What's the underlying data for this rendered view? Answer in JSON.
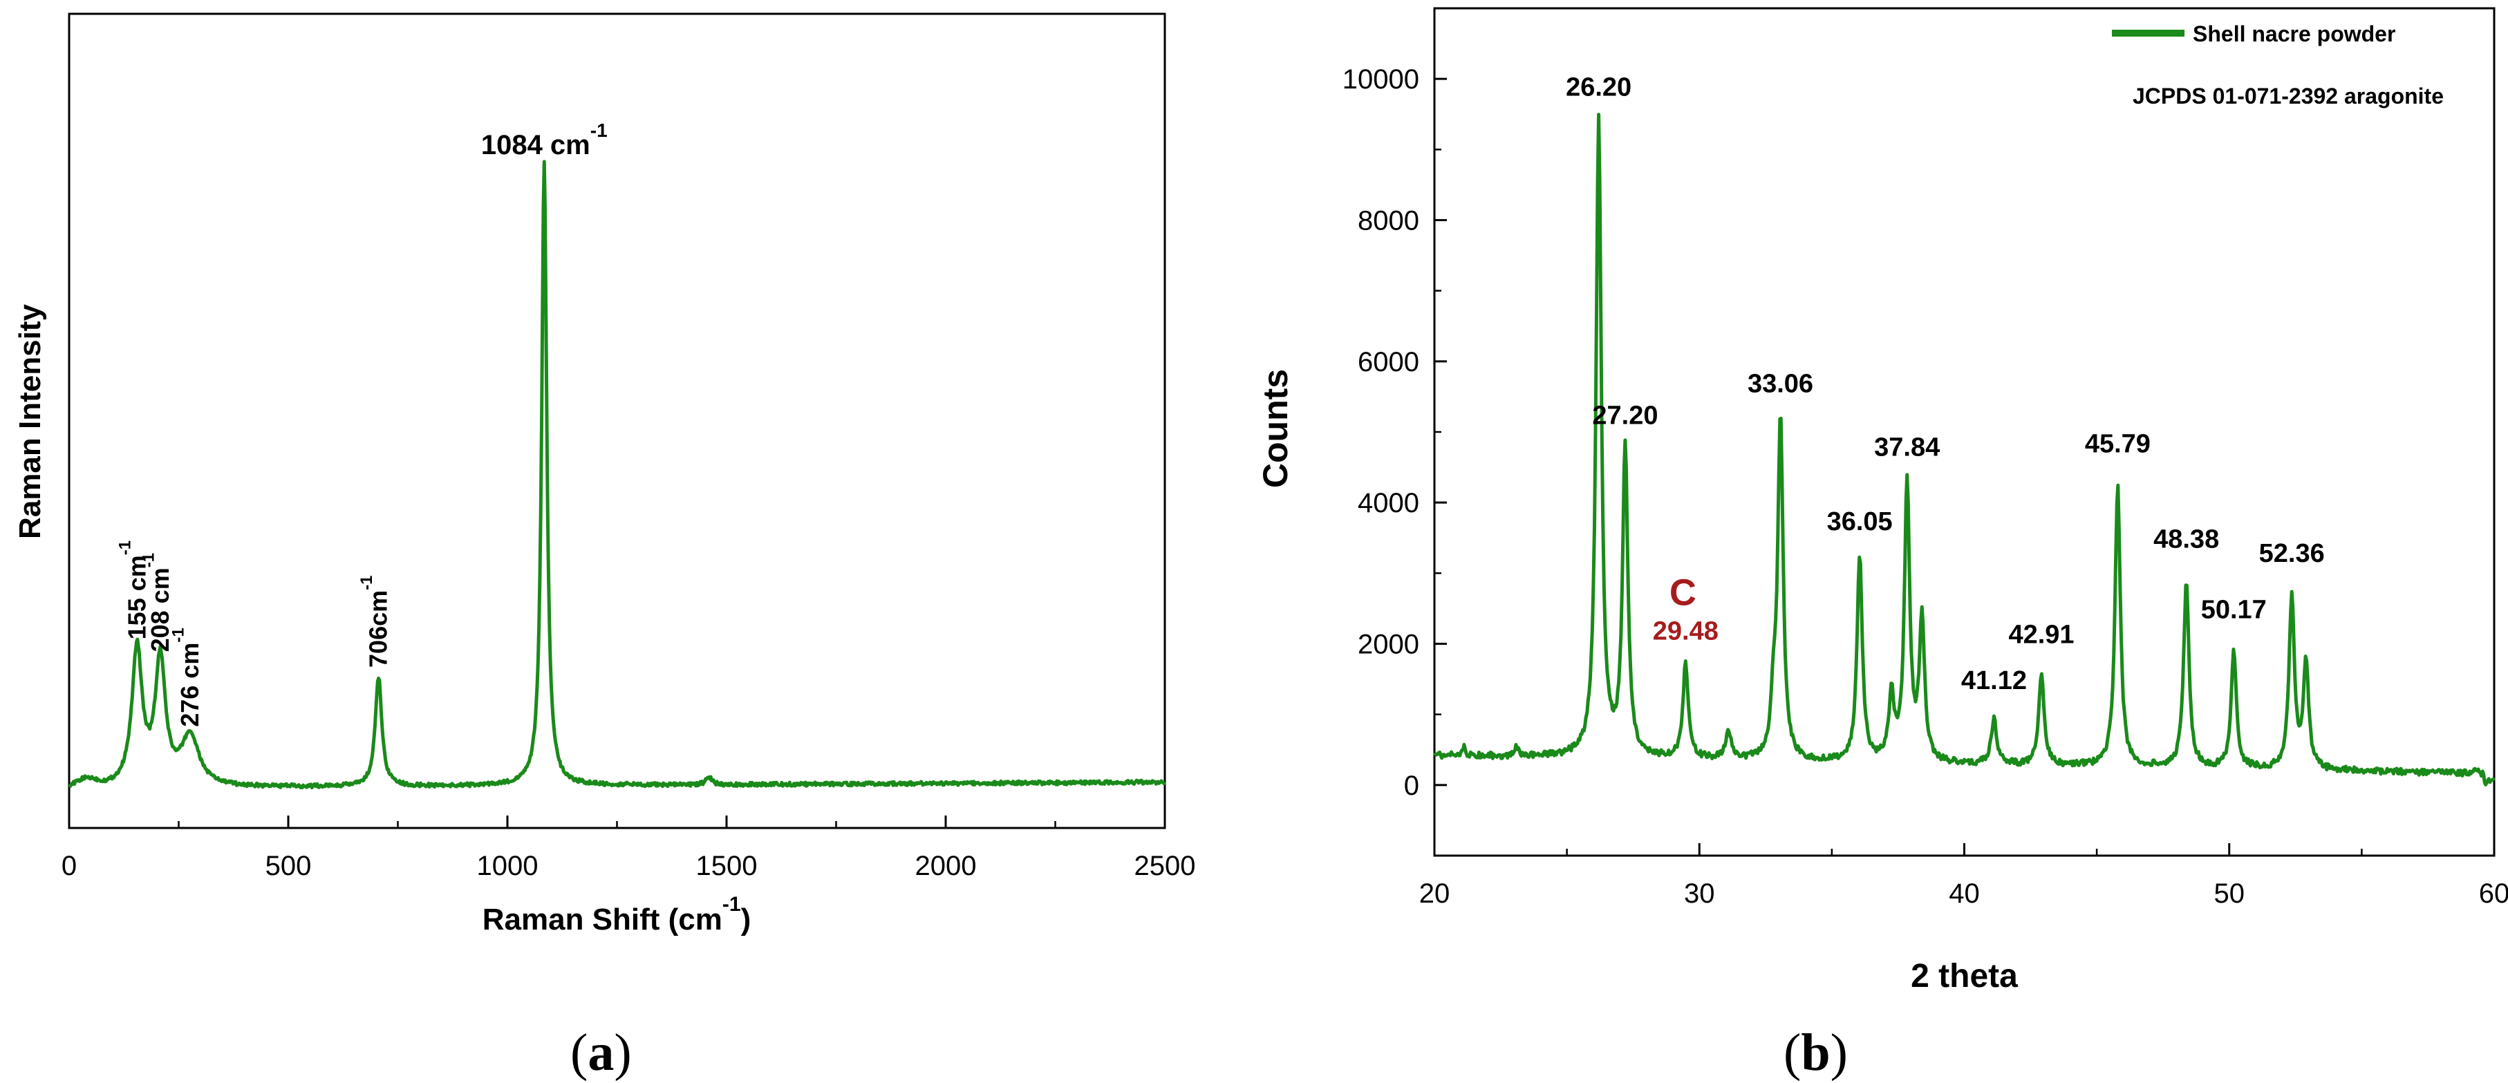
{
  "colors": {
    "series": "#1a8a1a",
    "axis": "#000000",
    "peak_label": "#000000",
    "highlight_label": "#a61c1c"
  },
  "captions": {
    "a": {
      "open": "(",
      "letter": "a",
      "close": ")"
    },
    "b": {
      "open": "(",
      "letter": "b",
      "close": ")"
    }
  },
  "chart_data": [
    {
      "id": "raman",
      "type": "line",
      "xlabel": "Raman Shift (cm",
      "xlabel_sup": "-1",
      "xlabel_tail": ")",
      "ylabel": "Raman Intensity",
      "xlim": [
        0,
        2500
      ],
      "ylim": [
        0,
        1
      ],
      "xticks": [
        0,
        500,
        1000,
        1500,
        2000,
        2500
      ],
      "yticks_shown": false,
      "grid": false,
      "peaks": [
        {
          "x": 155,
          "y": 0.22,
          "w": 14,
          "label": "155 cm",
          "sup": "-1",
          "rotated": true
        },
        {
          "x": 208,
          "y": 0.2,
          "w": 14,
          "label": "208 cm",
          "sup": "-1",
          "rotated": true
        },
        {
          "x": 276,
          "y": 0.08,
          "w": 24,
          "label": "276 cm",
          "sup": "-1",
          "rotated": true
        },
        {
          "x": 706,
          "y": 0.175,
          "w": 9,
          "label": "706cm",
          "sup": "-1",
          "rotated": true
        },
        {
          "x": 1084,
          "y": 1.0,
          "w": 7,
          "label": "1084 cm",
          "sup": "-1",
          "rotated": false
        },
        {
          "x": 1460,
          "y": 0.012,
          "w": 8,
          "label": "",
          "sup": "",
          "rotated": false
        }
      ]
    },
    {
      "id": "xrd",
      "type": "line",
      "xlabel": "2 theta",
      "ylabel": "Counts",
      "xlim": [
        20,
        60
      ],
      "ylim": [
        -1000,
        11000
      ],
      "xticks": [
        20,
        30,
        40,
        50,
        60
      ],
      "yticks": [
        0,
        2000,
        4000,
        6000,
        8000,
        10000
      ],
      "grid": false,
      "legend": {
        "position": "top-right",
        "series_name": "Shell nacre powder",
        "note": "JCPDS 01-071-2392 aragonite"
      },
      "annotation": {
        "text": "C",
        "x": 29.48
      },
      "peaks": [
        {
          "x": 26.2,
          "y": 9350,
          "label": "26.20"
        },
        {
          "x": 27.2,
          "y": 4700,
          "label": "27.20"
        },
        {
          "x": 29.48,
          "y": 1650,
          "label": "29.48",
          "highlight": true
        },
        {
          "x": 31.1,
          "y": 700,
          "label": ""
        },
        {
          "x": 32.8,
          "y": 1000,
          "label": ""
        },
        {
          "x": 33.06,
          "y": 5150,
          "label": "33.06"
        },
        {
          "x": 36.05,
          "y": 3200,
          "label": "36.05"
        },
        {
          "x": 37.25,
          "y": 1200,
          "label": ""
        },
        {
          "x": 37.84,
          "y": 4250,
          "label": "37.84"
        },
        {
          "x": 38.4,
          "y": 2300,
          "label": ""
        },
        {
          "x": 41.12,
          "y": 950,
          "label": "41.12"
        },
        {
          "x": 42.91,
          "y": 1600,
          "label": "42.91"
        },
        {
          "x": 45.79,
          "y": 4300,
          "label": "45.79"
        },
        {
          "x": 48.38,
          "y": 2950,
          "label": "48.38"
        },
        {
          "x": 50.17,
          "y": 1950,
          "label": "50.17"
        },
        {
          "x": 52.36,
          "y": 2750,
          "label": "52.36"
        },
        {
          "x": 52.9,
          "y": 1800,
          "label": ""
        },
        {
          "x": 59.2,
          "y": 350,
          "label": ""
        }
      ]
    }
  ]
}
